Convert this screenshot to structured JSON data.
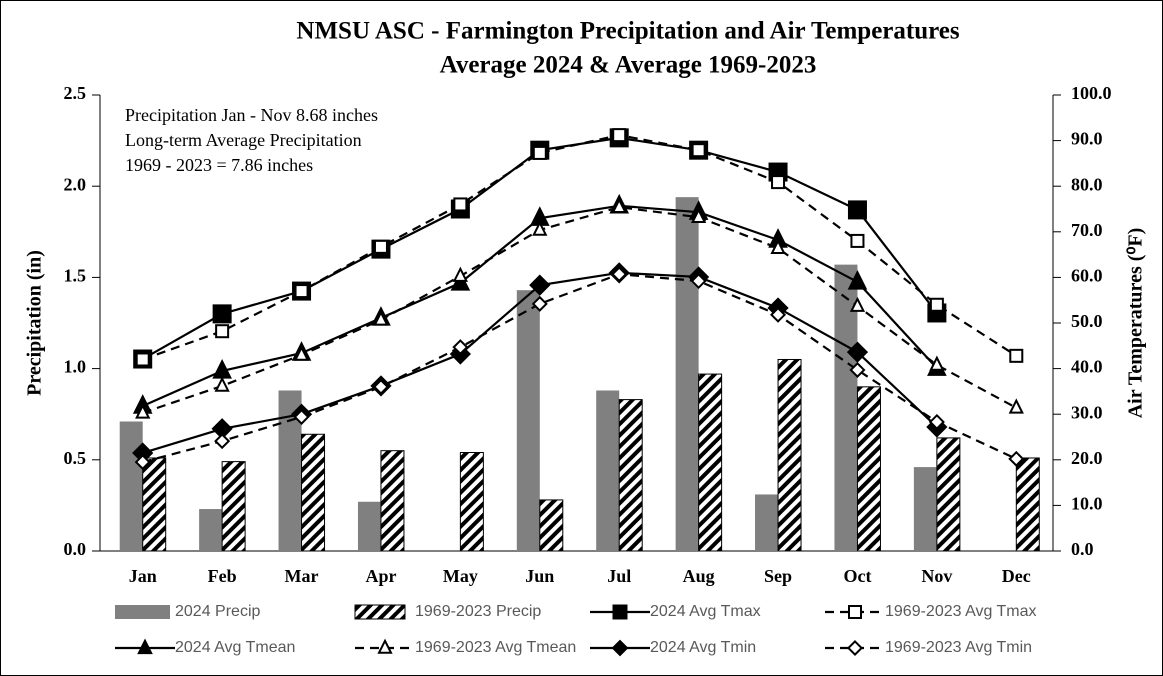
{
  "chart_data": {
    "type": "bar_line",
    "title": "NMSU ASC - Farmington Precipitation and Air Temperatures",
    "subtitle": "Average 2024 & Average 1969-2023",
    "annotations": [
      "Precipitation Jan - Nov 8.68 inches",
      "Long-term Average Precipitation",
      "1969 - 2023  =  7.86 inches"
    ],
    "y_label": "Precipitation (in)",
    "y2_label": "Air Temperatures (⁰F)",
    "categories": [
      "Jan",
      "Feb",
      "Mar",
      "Apr",
      "May",
      "Jun",
      "Jul",
      "Aug",
      "Sep",
      "Oct",
      "Nov",
      "Dec"
    ],
    "ylim": [
      0,
      2.5
    ],
    "yticks": [
      {
        "value": 0,
        "label": "0.0"
      },
      {
        "value": 0.5,
        "label": "0.5"
      },
      {
        "value": 1,
        "label": "1.0"
      },
      {
        "value": 1.5,
        "label": "1.5"
      },
      {
        "value": 2,
        "label": "2.0"
      },
      {
        "value": 2.5,
        "label": "2.5"
      }
    ],
    "y2lim": [
      0,
      100
    ],
    "y2ticks": [
      {
        "value": 0,
        "label": "0.0"
      },
      {
        "value": 10,
        "label": "10.0"
      },
      {
        "value": 20,
        "label": "20.0"
      },
      {
        "value": 30,
        "label": "30.0"
      },
      {
        "value": 40,
        "label": "40.0"
      },
      {
        "value": 50,
        "label": "50.0"
      },
      {
        "value": 60,
        "label": "60.0"
      },
      {
        "value": 70,
        "label": "70.0"
      },
      {
        "value": 80,
        "label": "80.0"
      },
      {
        "value": 90,
        "label": "90.0"
      },
      {
        "value": 100,
        "label": "100.0"
      }
    ],
    "series": [
      {
        "name": "2024 Precip",
        "kind": "bar",
        "color": "#808080",
        "values": [
          0.71,
          0.23,
          0.88,
          0.27,
          null,
          1.43,
          0.88,
          1.94,
          0.31,
          1.57,
          0.46,
          null
        ]
      },
      {
        "name": "1969-2023 Precip",
        "kind": "bar",
        "color": "#000000",
        "pattern": "hatch",
        "values": [
          0.51,
          0.49,
          0.64,
          0.55,
          0.54,
          0.28,
          0.83,
          0.97,
          1.05,
          0.9,
          0.62,
          0.51
        ]
      },
      {
        "name": "2024 Avg Tmax",
        "kind": "line",
        "axis": "y2",
        "color": "#000000",
        "dash": false,
        "marker": "square",
        "filled": true,
        "values": [
          42.1,
          52,
          57,
          66.2,
          75,
          87.9,
          90.6,
          87.9,
          83.1,
          74.8,
          52.2,
          null
        ]
      },
      {
        "name": "1969-2023 Avg Tmax",
        "kind": "line",
        "axis": "y2",
        "color": "#000000",
        "dash": true,
        "marker": "square",
        "filled": false,
        "values": [
          42,
          48.2,
          57,
          66.7,
          76,
          87.3,
          91.2,
          87.9,
          80.9,
          68,
          54,
          42.8
        ]
      },
      {
        "name": "2024 Avg Tmean",
        "kind": "line",
        "axis": "y2",
        "color": "#000000",
        "dash": false,
        "marker": "triangle",
        "filled": true,
        "values": [
          31.8,
          39.5,
          43.4,
          51.1,
          58.8,
          73,
          75.7,
          74.3,
          68.2,
          59,
          40.1,
          null
        ]
      },
      {
        "name": "1969-2023 Avg Tmean",
        "kind": "line",
        "axis": "y2",
        "color": "#000000",
        "dash": true,
        "marker": "triangle",
        "filled": false,
        "values": [
          30.3,
          36.2,
          43,
          50.7,
          60.3,
          70.4,
          75.4,
          73.2,
          66.4,
          53.7,
          40.8,
          31.4
        ]
      },
      {
        "name": "2024 Avg Tmin",
        "kind": "line",
        "axis": "y2",
        "color": "#000000",
        "dash": false,
        "marker": "diamond",
        "filled": true,
        "values": [
          21.5,
          26.8,
          30,
          36.2,
          43.2,
          58.3,
          61,
          60.1,
          53.3,
          43.6,
          27.2,
          null
        ]
      },
      {
        "name": "1969-2023 Avg Tmin",
        "kind": "line",
        "axis": "y2",
        "color": "#000000",
        "dash": true,
        "marker": "diamond",
        "filled": false,
        "values": [
          19.5,
          24.1,
          29.4,
          36,
          44.7,
          54.2,
          60.7,
          59.2,
          51.8,
          39.7,
          28.3,
          20.2
        ]
      }
    ]
  }
}
